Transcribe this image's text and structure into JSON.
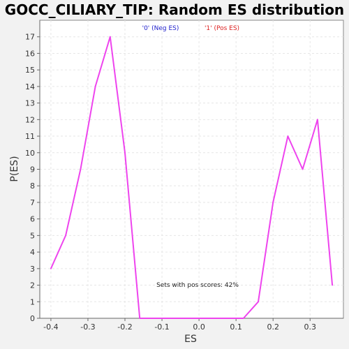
{
  "chart_data": {
    "type": "line",
    "title": "GOCC_CILIARY_TIP: Random ES distribution",
    "xlabel": "ES",
    "ylabel": "P(ES)",
    "xlim": [
      -0.43,
      0.39
    ],
    "ylim": [
      0,
      18
    ],
    "x_ticks": [
      -0.4,
      -0.3,
      -0.2,
      -0.1,
      0.0,
      0.1,
      0.2,
      0.3
    ],
    "x_tick_labels": [
      "-0.4",
      "-0.3",
      "-0.2",
      "-0.1",
      "0.0",
      "0.1",
      "0.2",
      "0.3"
    ],
    "y_ticks": [
      0,
      1,
      2,
      3,
      4,
      5,
      6,
      7,
      8,
      9,
      10,
      11,
      12,
      13,
      14,
      15,
      16,
      17
    ],
    "y_tick_labels": [
      "0",
      "1",
      "2",
      "3",
      "4",
      "5",
      "6",
      "7",
      "8",
      "9",
      "10",
      "11",
      "12",
      "13",
      "14",
      "15",
      "16",
      "17"
    ],
    "grid": true,
    "legend": {
      "placement": "top-center",
      "entries": [
        {
          "label": "'0' (Neg ES)",
          "color": "#2222cc"
        },
        {
          "label": "'1' (Pos ES)",
          "color": "#dd2222"
        }
      ]
    },
    "annotation": "Sets with pos scores: 42%",
    "series": [
      {
        "color": "#ee44ee",
        "x": [
          -0.4,
          -0.36,
          -0.32,
          -0.28,
          -0.24,
          -0.2,
          -0.16,
          -0.12,
          -0.08,
          -0.04,
          0.0,
          0.04,
          0.08,
          0.12,
          0.16,
          0.2,
          0.24,
          0.28,
          0.32,
          0.36
        ],
        "y": [
          3,
          5,
          9,
          14,
          17,
          10,
          0,
          0,
          0,
          0,
          0,
          0,
          0,
          0,
          1,
          7,
          11,
          9,
          12,
          2
        ]
      }
    ]
  }
}
